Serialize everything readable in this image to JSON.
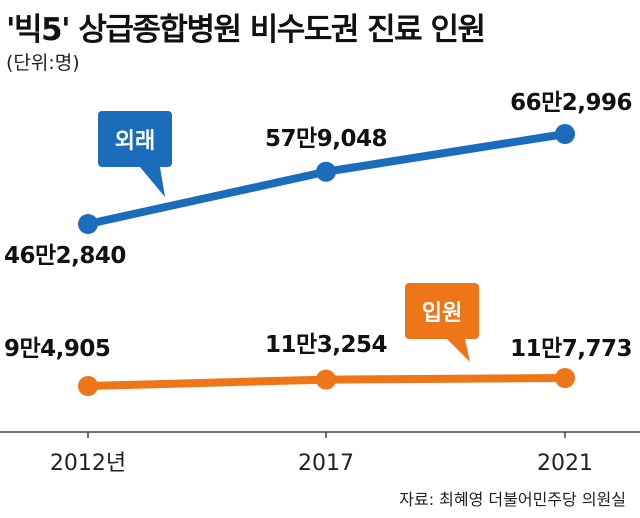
{
  "title": "'빅5' 상급종합병원 비수도권 진료 인원",
  "unit": "(단위:명)",
  "source": "자료: 최혜영 더불어민주당 의원실",
  "chart_data": {
    "type": "line",
    "title": "'빅5' 상급종합병원 비수도권 진료 인원",
    "categories": [
      "2012년",
      "2017",
      "2021"
    ],
    "grid": false,
    "series": [
      {
        "name": "외래",
        "color": "#1b6cba",
        "values": [
          462840,
          579048,
          662996
        ],
        "labels": [
          "46만2,840",
          "57만9,048",
          "66만2,996"
        ]
      },
      {
        "name": "입원",
        "color": "#ee7518",
        "values": [
          94905,
          113254,
          117773
        ],
        "labels": [
          "9만4,905",
          "11만3,254",
          "11만7,773"
        ]
      }
    ]
  }
}
